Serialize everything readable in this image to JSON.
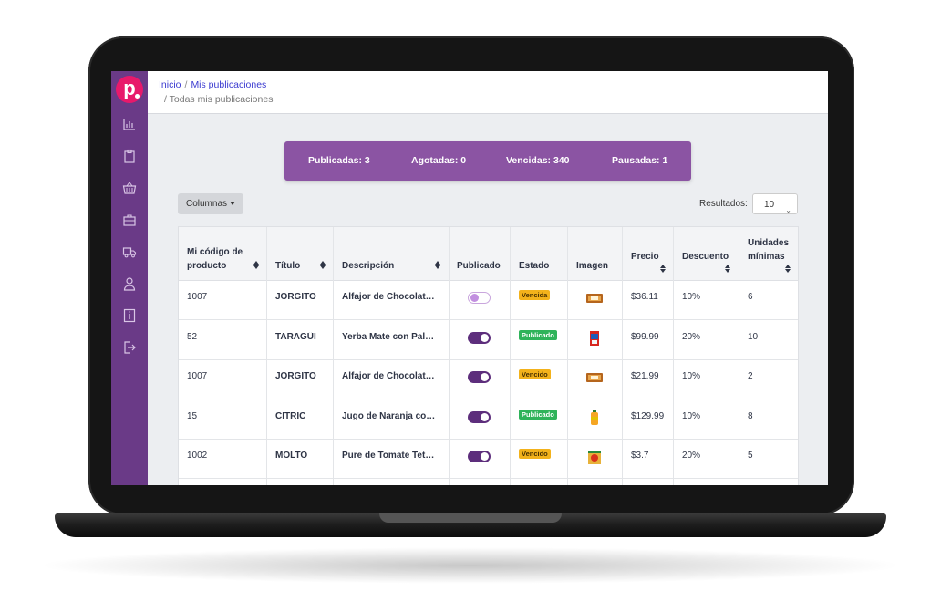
{
  "breadcrumb": {
    "home": "Inicio",
    "sep": "/",
    "current": "Mis publicaciones",
    "sub": "/  Todas mis publicaciones"
  },
  "logo": {
    "letter": "p"
  },
  "sidebar": {
    "items": [
      {
        "icon": "chart-icon"
      },
      {
        "icon": "clipboard-icon"
      },
      {
        "icon": "basket-icon"
      },
      {
        "icon": "briefcase-icon"
      },
      {
        "icon": "truck-icon"
      },
      {
        "icon": "user-icon"
      },
      {
        "icon": "info-icon"
      },
      {
        "icon": "logout-icon"
      }
    ]
  },
  "stats": {
    "published": "Publicadas: 3",
    "sold_out": "Agotadas: 0",
    "expired": "Vencidas: 340",
    "paused": "Pausadas: 1"
  },
  "toolbar": {
    "columns_label": "Columnas",
    "results_label": "Resultados:",
    "results_value": "10"
  },
  "table": {
    "headers": {
      "code_l1": "Mi código de",
      "code_l2": "producto",
      "title": "Título",
      "description": "Descripción",
      "published": "Publicado",
      "status": "Estado",
      "image": "Imagen",
      "price": "Precio",
      "discount": "Descuento",
      "units_l1": "Unidades",
      "units_l2": "mínimas"
    },
    "rows": [
      {
        "code": "1007",
        "title": "JORGITO",
        "description": "Alfajor de Chocolat…",
        "published": false,
        "status": "Vencida",
        "status_type": "warn",
        "image": "alfajor",
        "price": "$36.11",
        "discount": "10%",
        "units": "6"
      },
      {
        "code": "52",
        "title": "TARAGÜI",
        "description": "Yerba Mate con Pal…",
        "published": true,
        "status": "Publicado",
        "status_type": "ok",
        "image": "yerba",
        "price": "$99.99",
        "discount": "20%",
        "units": "10"
      },
      {
        "code": "1007",
        "title": "JORGITO",
        "description": "Alfajor de Chocolat…",
        "published": true,
        "status": "Vencido",
        "status_type": "warn",
        "image": "alfajor",
        "price": "$21.99",
        "discount": "10%",
        "units": "2"
      },
      {
        "code": "15",
        "title": "CITRIC",
        "description": "Jugo de Naranja co…",
        "published": true,
        "status": "Publicado",
        "status_type": "ok",
        "image": "juice",
        "price": "$129.99",
        "discount": "10%",
        "units": "8"
      },
      {
        "code": "1002",
        "title": "MOLTO",
        "description": "Pure de Tomate Tet…",
        "published": true,
        "status": "Vencido",
        "status_type": "warn",
        "image": "tomato",
        "price": "$3.7",
        "discount": "20%",
        "units": "5"
      }
    ]
  },
  "colors": {
    "sidebar": "#6a3a87",
    "stats_bg": "#8b54a3",
    "logo": "#e8196b",
    "toggle_on": "#5d2e7c",
    "warn": "#f3b21b",
    "ok": "#2fb35a"
  }
}
